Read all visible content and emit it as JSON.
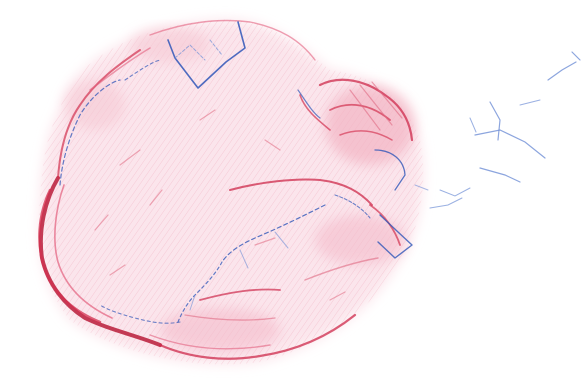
{
  "image": {
    "description_colors": {
      "background": "#ffffff",
      "red_stroke": "#d2304f",
      "red_dark": "#b81c3a",
      "pink_fill": "#f6c9d4",
      "blue_line": "#2f56b8",
      "blue_light": "#6f8ed6"
    }
  }
}
